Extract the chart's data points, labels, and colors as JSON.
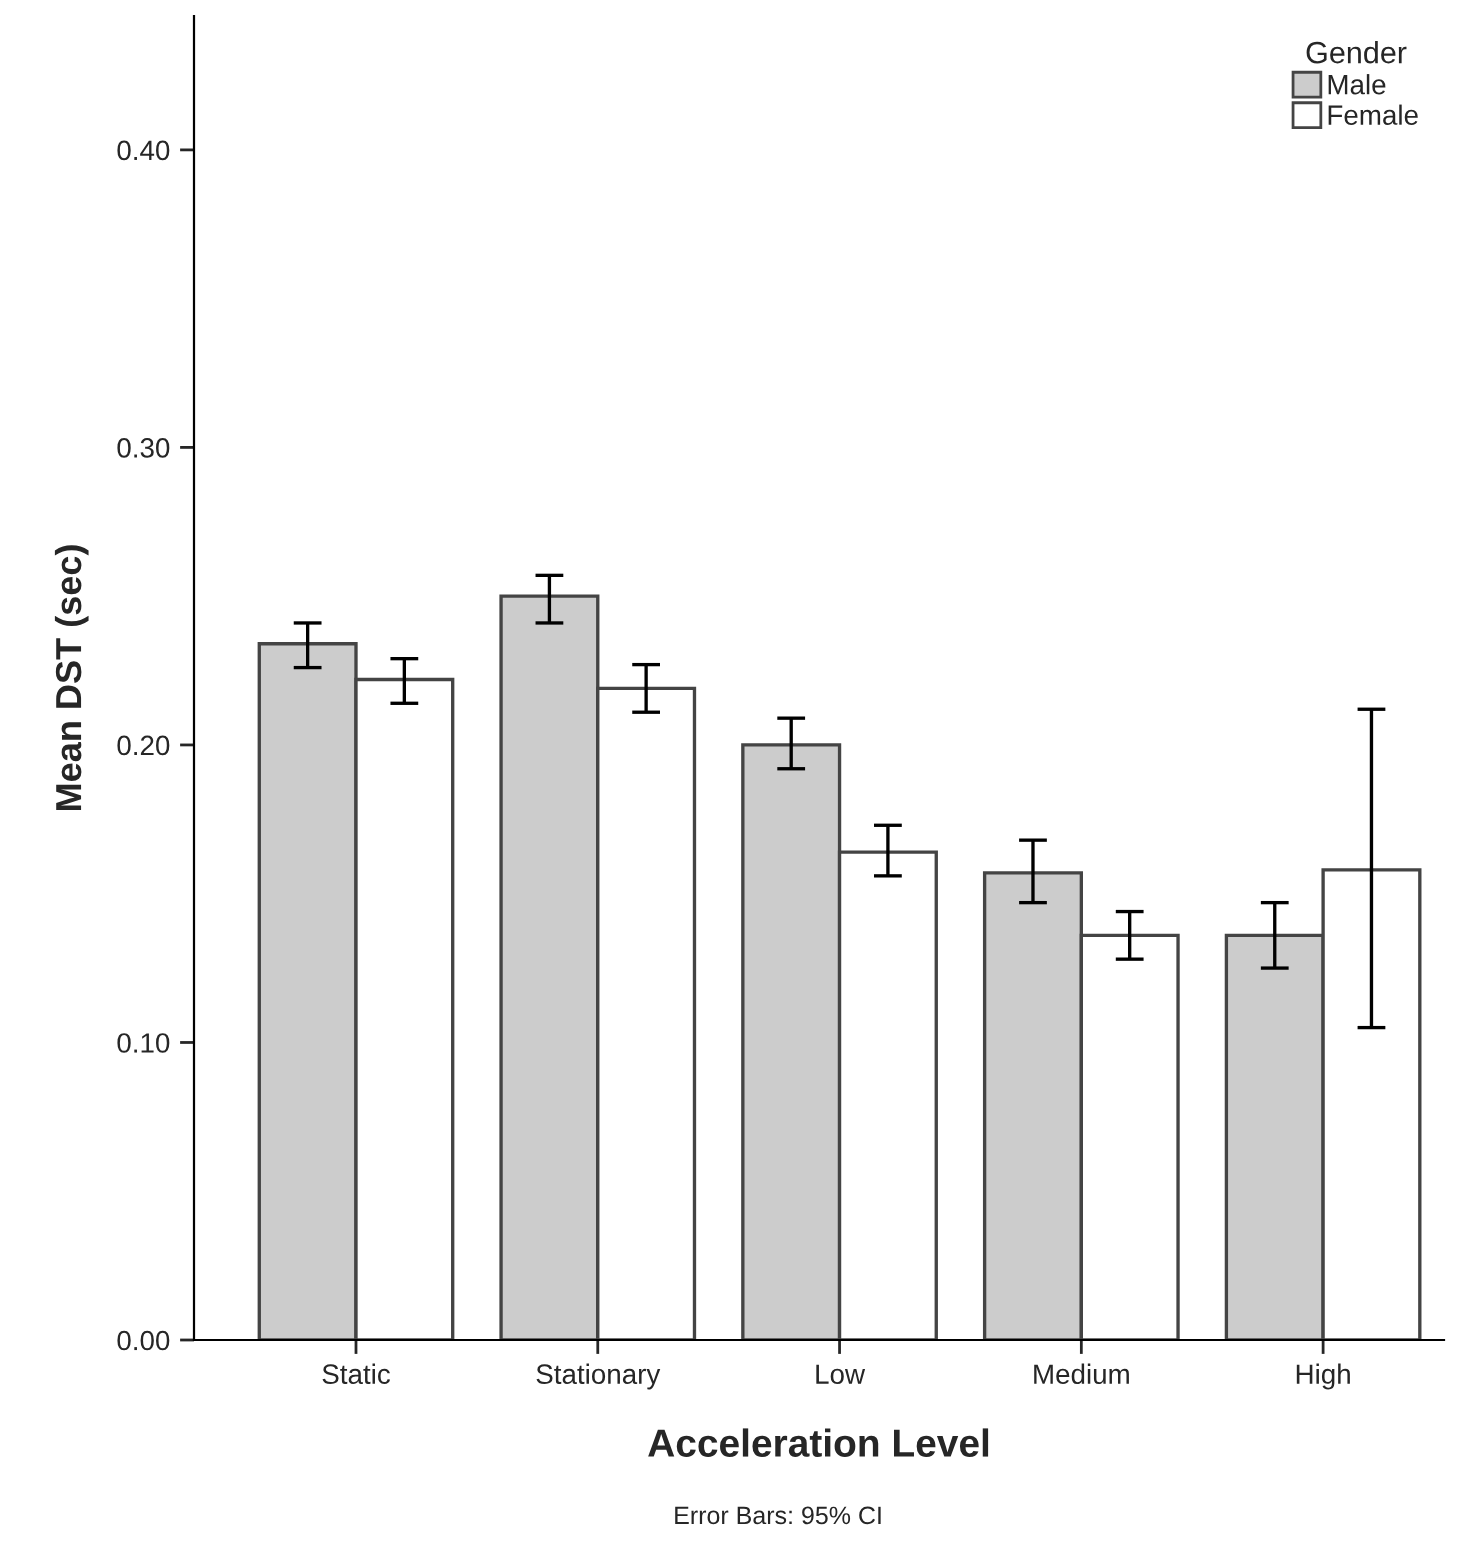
{
  "chart_data": {
    "type": "bar",
    "xlabel": "Acceleration Level",
    "ylabel": "Mean DST (sec)",
    "legend_title": "Gender",
    "legend": "top right",
    "categories": [
      "Static",
      "Stationary",
      "Low",
      "Medium",
      "High"
    ],
    "series": [
      {
        "name": "Male",
        "color": "#cccccc",
        "values": [
          0.234,
          0.25,
          0.2,
          0.157,
          0.136
        ],
        "errors": [
          [
            0.226,
            0.241
          ],
          [
            0.241,
            0.257
          ],
          [
            0.192,
            0.209
          ],
          [
            0.147,
            0.168
          ],
          [
            0.125,
            0.147
          ]
        ]
      },
      {
        "name": "Female",
        "color": "#ffffff",
        "values": [
          0.222,
          0.219,
          0.164,
          0.136,
          0.158
        ],
        "errors": [
          [
            0.214,
            0.229
          ],
          [
            0.211,
            0.227
          ],
          [
            0.156,
            0.173
          ],
          [
            0.128,
            0.144
          ],
          [
            0.105,
            0.212
          ]
        ]
      }
    ],
    "ylim": [
      0,
      0.445
    ],
    "yticks": [
      {
        "value": 0,
        "label": "0.00"
      },
      {
        "value": 0.1,
        "label": "0.10"
      },
      {
        "value": 0.2,
        "label": "0.20"
      },
      {
        "value": 0.3,
        "label": "0.30"
      },
      {
        "value": 0.4,
        "label": "0.40"
      }
    ],
    "grid": false,
    "annotations": [
      "Error Bars: 95% CI"
    ]
  }
}
